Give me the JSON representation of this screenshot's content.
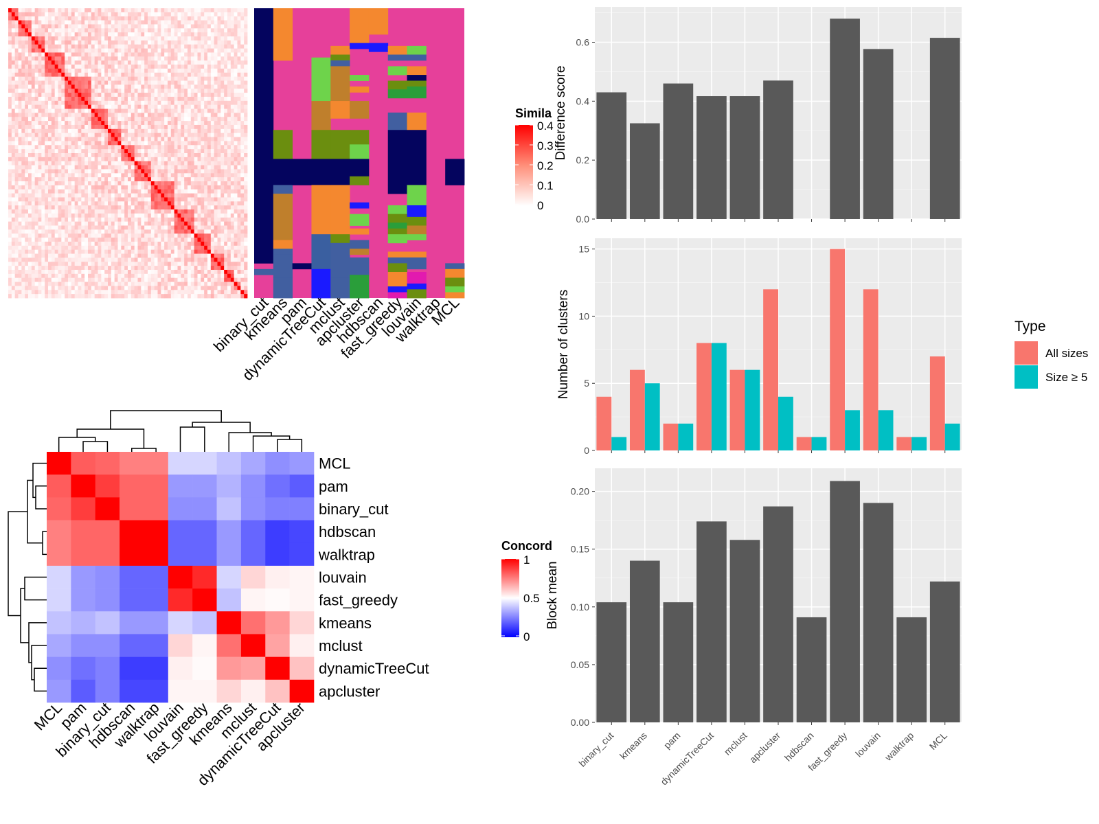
{
  "colors": {
    "panel_bg": "#ebebeb",
    "grid": "#ffffff",
    "bar": "#595959",
    "all_sizes": "#f8766d",
    "size5": "#00bfc4",
    "heat_red": "#ff0000",
    "heat_white": "#ffffff",
    "heat_blue": "#0000ff",
    "cluster_bg": "#e6409a"
  },
  "similarity_heatmap": {
    "legend_title": "Simila",
    "legend_ticks": [
      "0.4",
      "0.3",
      "0.2",
      "0.1",
      "0"
    ],
    "block_sizes": [
      3,
      4,
      4,
      6,
      8,
      5,
      4,
      4,
      5,
      7,
      6,
      5,
      4,
      3,
      2,
      2
    ]
  },
  "cluster_assignment": {
    "methods": [
      "binary_cut",
      "kmeans",
      "pam",
      "dynamicTreeCut",
      "mclust",
      "apcluster",
      "hdbscan",
      "fast_greedy",
      "louvain",
      "walktrap",
      "MCL"
    ]
  },
  "concordance": {
    "legend_title": "Concord",
    "legend_ticks": [
      "1",
      "0.5",
      "0"
    ],
    "order": [
      "MCL",
      "pam",
      "binary_cut",
      "hdbscan",
      "walktrap",
      "louvain",
      "fast_greedy",
      "kmeans",
      "mclust",
      "dynamicTreeCut",
      "apcluster"
    ]
  },
  "chart_data": [
    {
      "type": "bar",
      "categories": [
        "binary_cut",
        "kmeans",
        "pam",
        "dynamicTreeCut",
        "mclust",
        "apcluster",
        "hdbscan",
        "fast_greedy",
        "louvain",
        "walktrap",
        "MCL"
      ],
      "values": [
        0.43,
        0.325,
        0.46,
        0.417,
        0.417,
        0.47,
        null,
        0.68,
        0.577,
        null,
        0.615
      ],
      "ylabel": "Difference score",
      "ylim": [
        0,
        0.72
      ],
      "yticks": [
        "0.0",
        "0.2",
        "0.4",
        "0.6"
      ]
    },
    {
      "type": "bar",
      "categories": [
        "binary_cut",
        "kmeans",
        "pam",
        "dynamicTreeCut",
        "mclust",
        "apcluster",
        "hdbscan",
        "fast_greedy",
        "louvain",
        "walktrap",
        "MCL"
      ],
      "series": [
        {
          "name": "All sizes",
          "values": [
            4,
            6,
            2,
            8,
            6,
            12,
            1,
            15,
            12,
            1,
            7
          ]
        },
        {
          "name": "Size ≥ 5",
          "values": [
            1,
            5,
            2,
            8,
            6,
            4,
            1,
            3,
            3,
            1,
            2
          ]
        }
      ],
      "ylabel": "Number of clusters",
      "ylim": [
        0,
        15.8
      ],
      "yticks": [
        "0",
        "5",
        "10",
        "15"
      ],
      "legend_title": "Type",
      "legend_position": "right"
    },
    {
      "type": "bar",
      "categories": [
        "binary_cut",
        "kmeans",
        "pam",
        "dynamicTreeCut",
        "mclust",
        "apcluster",
        "hdbscan",
        "fast_greedy",
        "louvain",
        "walktrap",
        "MCL"
      ],
      "values": [
        0.104,
        0.14,
        0.104,
        0.174,
        0.158,
        0.187,
        0.091,
        0.209,
        0.19,
        0.091,
        0.122
      ],
      "ylabel": "Block mean",
      "ylim": [
        0,
        0.22
      ],
      "yticks": [
        "0.00",
        "0.05",
        "0.10",
        "0.15",
        "0.20"
      ]
    },
    {
      "type": "heatmap",
      "rows": [
        "MCL",
        "pam",
        "binary_cut",
        "hdbscan",
        "walktrap",
        "louvain",
        "fast_greedy",
        "kmeans",
        "mclust",
        "dynamicTreeCut",
        "apcluster"
      ],
      "columns": [
        "MCL",
        "pam",
        "binary_cut",
        "hdbscan",
        "walktrap",
        "louvain",
        "fast_greedy",
        "kmeans",
        "mclust",
        "dynamicTreeCut",
        "apcluster"
      ],
      "values": [
        [
          1.0,
          0.82,
          0.8,
          0.75,
          0.75,
          0.42,
          0.42,
          0.38,
          0.33,
          0.28,
          0.3
        ],
        [
          0.82,
          1.0,
          0.88,
          0.8,
          0.8,
          0.3,
          0.3,
          0.35,
          0.28,
          0.22,
          0.18
        ],
        [
          0.8,
          0.88,
          1.0,
          0.8,
          0.8,
          0.28,
          0.28,
          0.38,
          0.28,
          0.25,
          0.25
        ],
        [
          0.75,
          0.8,
          0.8,
          1.0,
          1.0,
          0.2,
          0.2,
          0.3,
          0.2,
          0.12,
          0.14
        ],
        [
          0.75,
          0.8,
          0.8,
          1.0,
          1.0,
          0.2,
          0.2,
          0.3,
          0.2,
          0.12,
          0.14
        ],
        [
          0.42,
          0.3,
          0.28,
          0.2,
          0.2,
          1.0,
          0.92,
          0.42,
          0.58,
          0.53,
          0.52
        ],
        [
          0.42,
          0.3,
          0.28,
          0.2,
          0.2,
          0.92,
          1.0,
          0.38,
          0.52,
          0.51,
          0.52
        ],
        [
          0.38,
          0.35,
          0.38,
          0.3,
          0.3,
          0.42,
          0.38,
          1.0,
          0.78,
          0.7,
          0.58
        ],
        [
          0.33,
          0.28,
          0.28,
          0.2,
          0.2,
          0.58,
          0.52,
          0.78,
          1.0,
          0.68,
          0.53
        ],
        [
          0.28,
          0.22,
          0.25,
          0.12,
          0.12,
          0.53,
          0.51,
          0.7,
          0.68,
          1.0,
          0.62
        ],
        [
          0.3,
          0.18,
          0.25,
          0.14,
          0.14,
          0.52,
          0.52,
          0.58,
          0.53,
          0.62,
          1.0
        ]
      ]
    }
  ]
}
